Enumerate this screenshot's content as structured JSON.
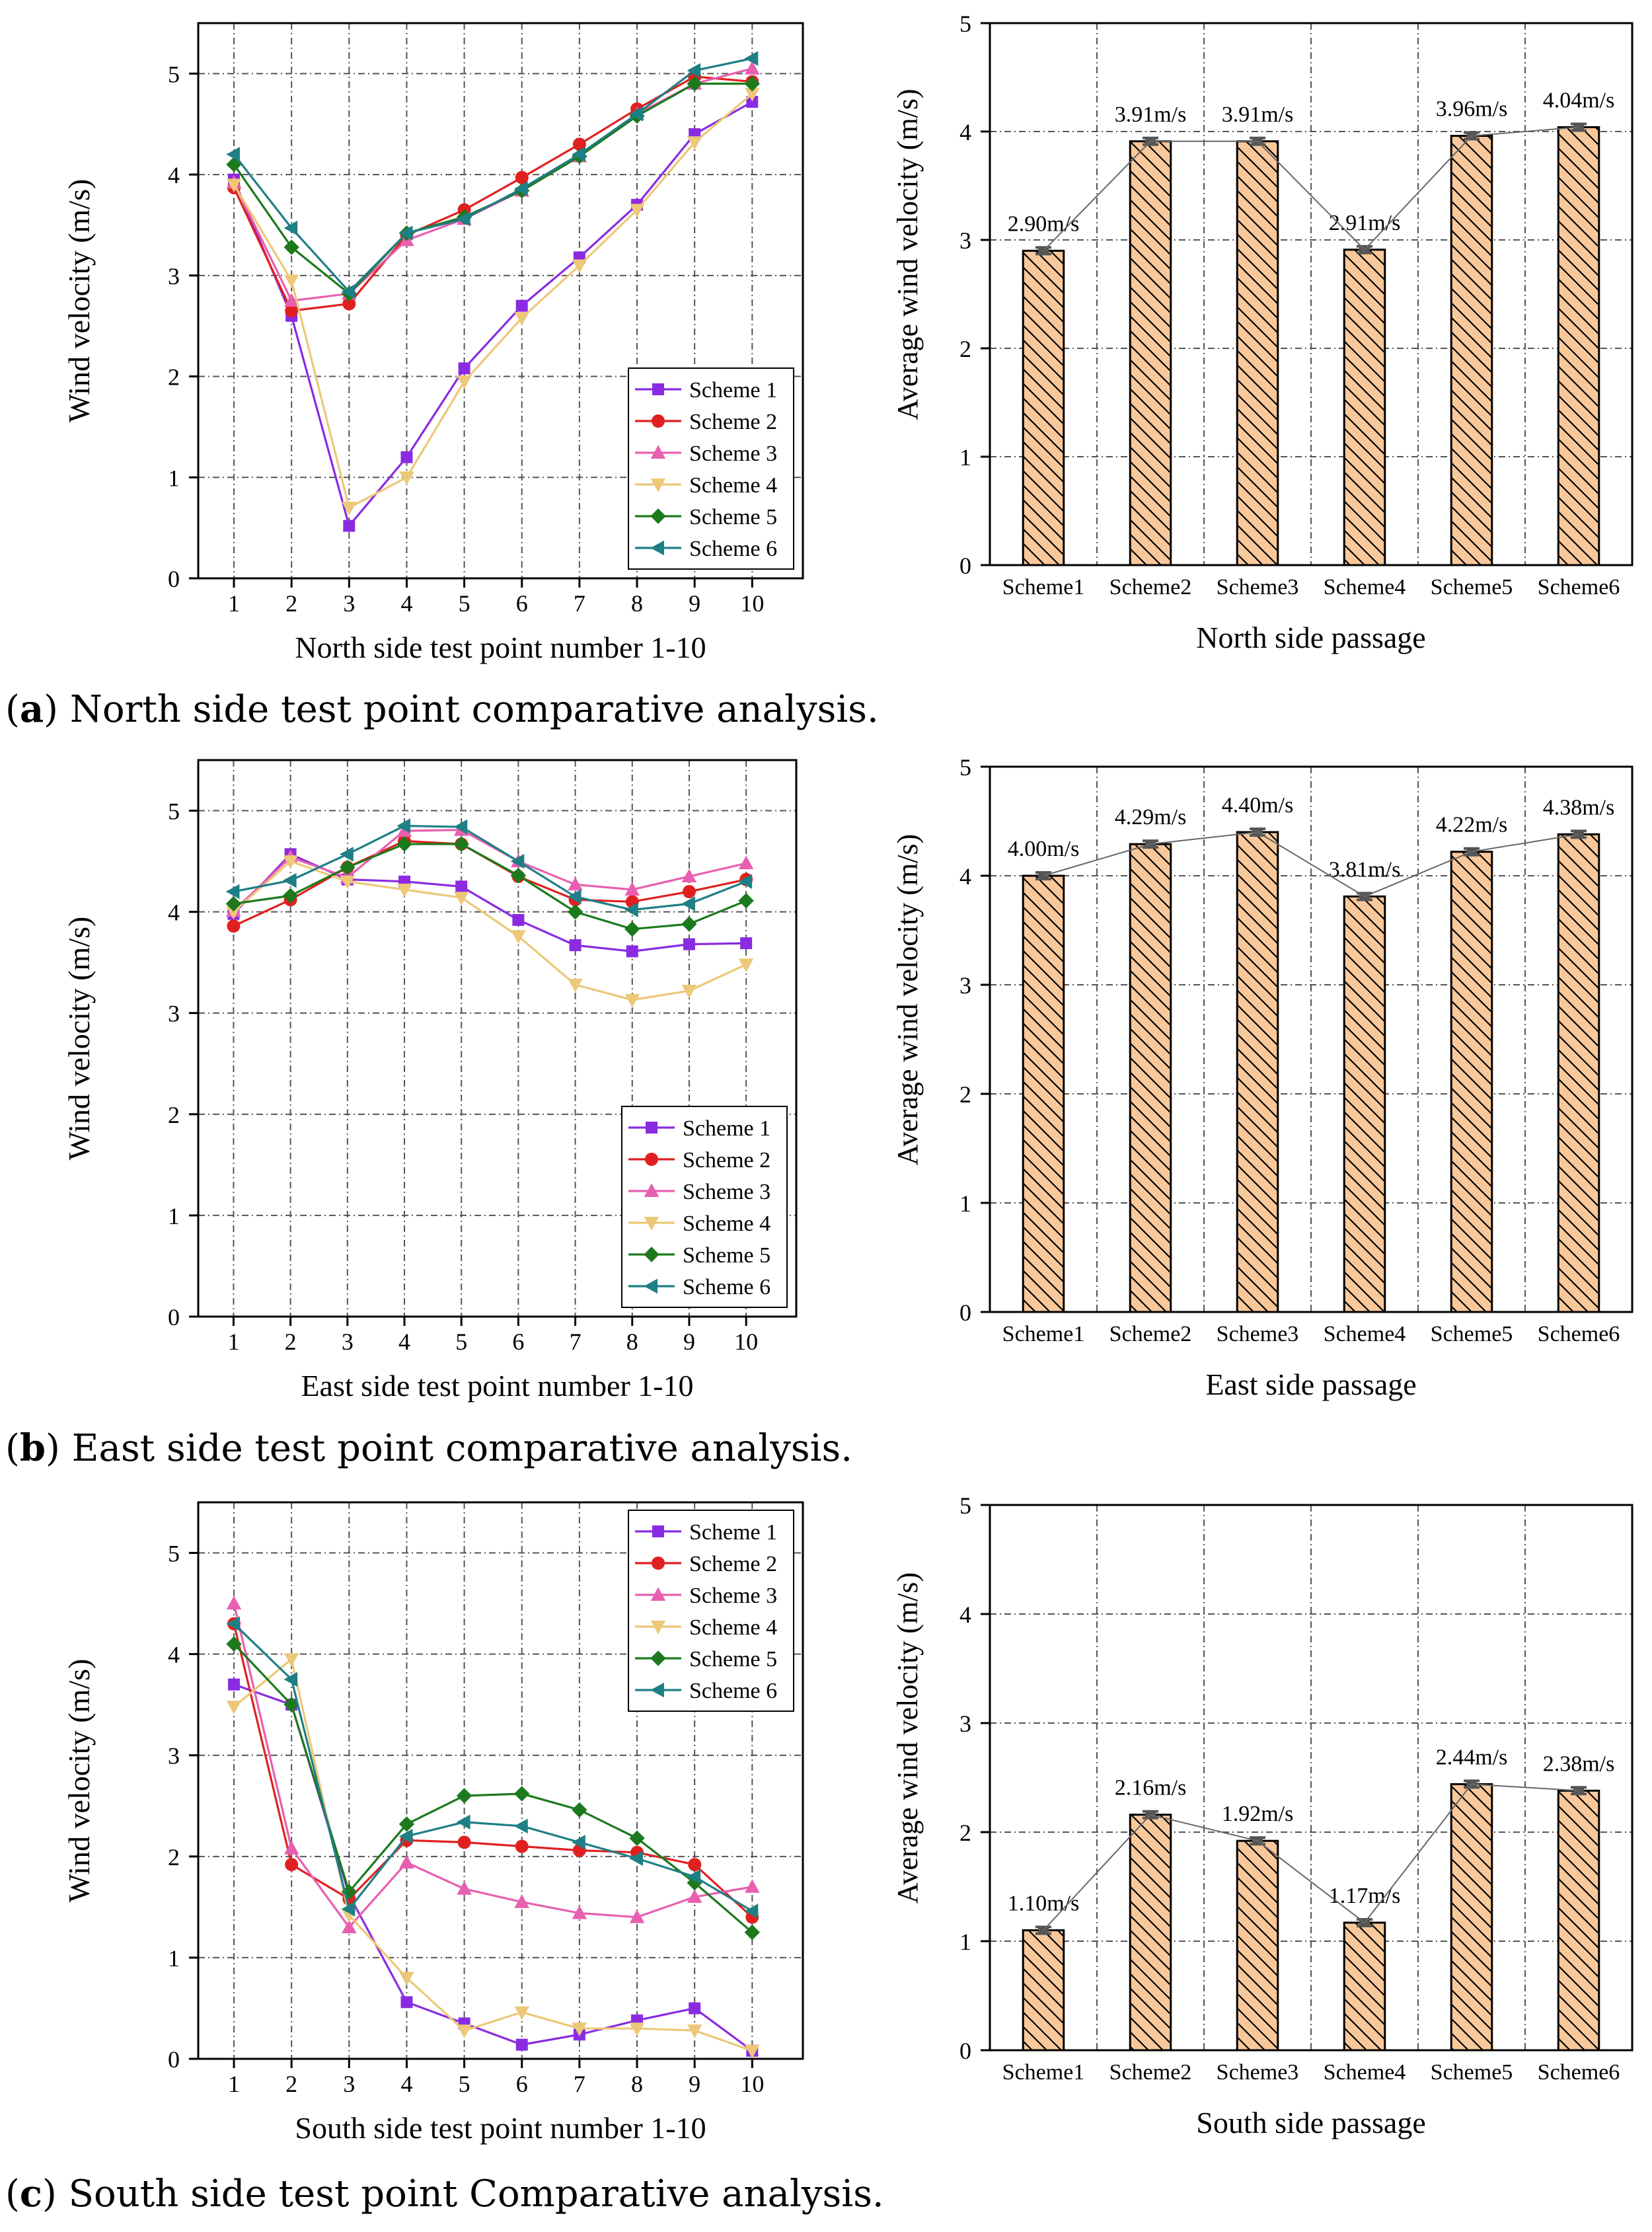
{
  "figure": {
    "captions": [
      {
        "letter": "a",
        "text": "North side test point comparative analysis."
      },
      {
        "letter": "b",
        "text": "East side test point comparative analysis."
      },
      {
        "letter": "c",
        "text": "South side test point Comparative analysis."
      }
    ]
  },
  "colors": {
    "Scheme 1": "#8a2be2",
    "Scheme 2": "#e02020",
    "Scheme 3": "#e85fb0",
    "Scheme 4": "#ecc878",
    "Scheme 5": "#1c7a1c",
    "Scheme 6": "#1f7f86",
    "bar_fill": "#f9c89a",
    "bar_stroke": "#000000",
    "grid": "#555555"
  },
  "chart_data": [
    {
      "id": "a-line",
      "type": "line",
      "title": "",
      "xlabel": "North side test point number 1-10",
      "ylabel": "Wind velocity (m/s)",
      "x": [
        1,
        2,
        3,
        4,
        5,
        6,
        7,
        8,
        9,
        10
      ],
      "xticks": [
        "1",
        "2",
        "3",
        "4",
        "5",
        "6",
        "7",
        "8",
        "9",
        "10"
      ],
      "ylim": [
        0,
        5.5
      ],
      "yticks": [
        0,
        1,
        2,
        3,
        4,
        5
      ],
      "grid": true,
      "legend": "bottom-right",
      "series": [
        {
          "name": "Scheme 1",
          "marker": "square",
          "values": [
            3.95,
            2.6,
            0.52,
            1.2,
            2.08,
            2.7,
            3.18,
            3.7,
            4.4,
            4.72
          ]
        },
        {
          "name": "Scheme 2",
          "marker": "circle",
          "values": [
            3.87,
            2.65,
            2.72,
            3.4,
            3.65,
            3.97,
            4.3,
            4.65,
            4.97,
            4.92
          ]
        },
        {
          "name": "Scheme 3",
          "marker": "triangle-up",
          "values": [
            3.92,
            2.75,
            2.82,
            3.35,
            3.56,
            3.84,
            4.18,
            4.6,
            4.9,
            5.05
          ]
        },
        {
          "name": "Scheme 4",
          "marker": "triangle-down",
          "values": [
            3.9,
            2.95,
            0.7,
            1.0,
            1.95,
            2.58,
            3.1,
            3.65,
            4.32,
            4.8
          ]
        },
        {
          "name": "Scheme 5",
          "marker": "diamond",
          "values": [
            4.1,
            3.28,
            2.82,
            3.42,
            3.58,
            3.84,
            4.18,
            4.58,
            4.9,
            4.9
          ]
        },
        {
          "name": "Scheme 6",
          "marker": "triangle-left",
          "values": [
            4.2,
            3.47,
            2.84,
            3.42,
            3.56,
            3.86,
            4.2,
            4.6,
            5.03,
            5.15
          ]
        }
      ]
    },
    {
      "id": "a-bar",
      "type": "bar",
      "title": "",
      "xlabel": "North side passage",
      "ylabel": "Average wind velocity (m/s)",
      "categories": [
        "Scheme1",
        "Scheme2",
        "Scheme3",
        "Scheme4",
        "Scheme5",
        "Scheme6"
      ],
      "values": [
        2.9,
        3.91,
        3.91,
        2.91,
        3.96,
        4.04
      ],
      "labels": [
        "2.90m/s",
        "3.91m/s",
        "3.91m/s",
        "2.91m/s",
        "3.96m/s",
        "4.04m/s"
      ],
      "ylim": [
        0,
        5
      ],
      "yticks": [
        0,
        1,
        2,
        3,
        4,
        5
      ],
      "grid": true
    },
    {
      "id": "b-line",
      "type": "line",
      "title": "",
      "xlabel": "East side test point number 1-10",
      "ylabel": "Wind velocity (m/s)",
      "x": [
        1,
        2,
        3,
        4,
        5,
        6,
        7,
        8,
        9,
        10
      ],
      "xticks": [
        "1",
        "2",
        "3",
        "4",
        "5",
        "6",
        "7",
        "8",
        "9",
        "10"
      ],
      "ylim": [
        0,
        5.5
      ],
      "yticks": [
        0,
        1,
        2,
        3,
        4,
        5
      ],
      "grid": true,
      "legend": "bottom-right",
      "series": [
        {
          "name": "Scheme 1",
          "marker": "square",
          "values": [
            3.98,
            4.57,
            4.32,
            4.3,
            4.25,
            3.92,
            3.67,
            3.61,
            3.68,
            3.69
          ]
        },
        {
          "name": "Scheme 2",
          "marker": "circle",
          "values": [
            3.86,
            4.12,
            4.44,
            4.7,
            4.67,
            4.35,
            4.12,
            4.1,
            4.2,
            4.32
          ]
        },
        {
          "name": "Scheme 3",
          "marker": "triangle-up",
          "values": [
            4.01,
            4.54,
            4.34,
            4.8,
            4.81,
            4.5,
            4.27,
            4.22,
            4.35,
            4.48
          ]
        },
        {
          "name": "Scheme 4",
          "marker": "triangle-down",
          "values": [
            4.0,
            4.5,
            4.3,
            4.22,
            4.14,
            3.76,
            3.28,
            3.13,
            3.22,
            3.48
          ]
        },
        {
          "name": "Scheme 5",
          "marker": "diamond",
          "values": [
            4.08,
            4.16,
            4.44,
            4.67,
            4.67,
            4.36,
            4.0,
            3.83,
            3.88,
            4.11
          ]
        },
        {
          "name": "Scheme 6",
          "marker": "triangle-left",
          "values": [
            4.2,
            4.31,
            4.57,
            4.85,
            4.84,
            4.5,
            4.15,
            4.02,
            4.08,
            4.3
          ]
        }
      ]
    },
    {
      "id": "b-bar",
      "type": "bar",
      "title": "",
      "xlabel": "East side passage",
      "ylabel": "Average wind velocity (m/s)",
      "categories": [
        "Scheme1",
        "Scheme2",
        "Scheme3",
        "Scheme4",
        "Scheme5",
        "Scheme6"
      ],
      "values": [
        4.0,
        4.29,
        4.4,
        3.81,
        4.22,
        4.38
      ],
      "labels": [
        "4.00m/s",
        "4.29m/s",
        "4.40m/s",
        "3.81m/s",
        "4.22m/s",
        "4.38m/s"
      ],
      "ylim": [
        0,
        5
      ],
      "yticks": [
        0,
        1,
        2,
        3,
        4,
        5
      ],
      "grid": true
    },
    {
      "id": "c-line",
      "type": "line",
      "title": "",
      "xlabel": "South side test point number 1-10",
      "ylabel": "Wind velocity (m/s)",
      "x": [
        1,
        2,
        3,
        4,
        5,
        6,
        7,
        8,
        9,
        10
      ],
      "xticks": [
        "1",
        "2",
        "3",
        "4",
        "5",
        "6",
        "7",
        "8",
        "9",
        "10"
      ],
      "ylim": [
        0,
        5.5
      ],
      "yticks": [
        0,
        1,
        2,
        3,
        4,
        5
      ],
      "grid": true,
      "legend": "top-right",
      "series": [
        {
          "name": "Scheme 1",
          "marker": "square",
          "values": [
            3.7,
            3.5,
            1.62,
            0.56,
            0.35,
            0.14,
            0.24,
            0.38,
            0.5,
            0.08
          ]
        },
        {
          "name": "Scheme 2",
          "marker": "circle",
          "values": [
            4.3,
            1.92,
            1.58,
            2.16,
            2.14,
            2.1,
            2.06,
            2.04,
            1.92,
            1.4
          ]
        },
        {
          "name": "Scheme 3",
          "marker": "triangle-up",
          "values": [
            4.5,
            2.08,
            1.3,
            1.94,
            1.68,
            1.55,
            1.44,
            1.4,
            1.6,
            1.7
          ]
        },
        {
          "name": "Scheme 4",
          "marker": "triangle-down",
          "values": [
            3.48,
            3.95,
            1.42,
            0.8,
            0.28,
            0.46,
            0.3,
            0.3,
            0.28,
            0.08
          ]
        },
        {
          "name": "Scheme 5",
          "marker": "diamond",
          "values": [
            4.1,
            3.5,
            1.65,
            2.32,
            2.6,
            2.62,
            2.46,
            2.18,
            1.74,
            1.25
          ]
        },
        {
          "name": "Scheme 6",
          "marker": "triangle-left",
          "values": [
            4.3,
            3.75,
            1.48,
            2.2,
            2.34,
            2.3,
            2.14,
            1.98,
            1.8,
            1.46
          ]
        }
      ]
    },
    {
      "id": "c-bar",
      "type": "bar",
      "title": "",
      "xlabel": "South side passage",
      "ylabel": "Average wind velocity (m/s)",
      "categories": [
        "Scheme1",
        "Scheme2",
        "Scheme3",
        "Scheme4",
        "Scheme5",
        "Scheme6"
      ],
      "values": [
        1.1,
        2.16,
        1.92,
        1.17,
        2.44,
        2.38
      ],
      "labels": [
        "1.10m/s",
        "2.16m/s",
        "1.92m/s",
        "1.17m/s",
        "2.44m/s",
        "2.38m/s"
      ],
      "ylim": [
        0,
        5
      ],
      "yticks": [
        0,
        1,
        2,
        3,
        4,
        5
      ],
      "grid": true
    }
  ]
}
